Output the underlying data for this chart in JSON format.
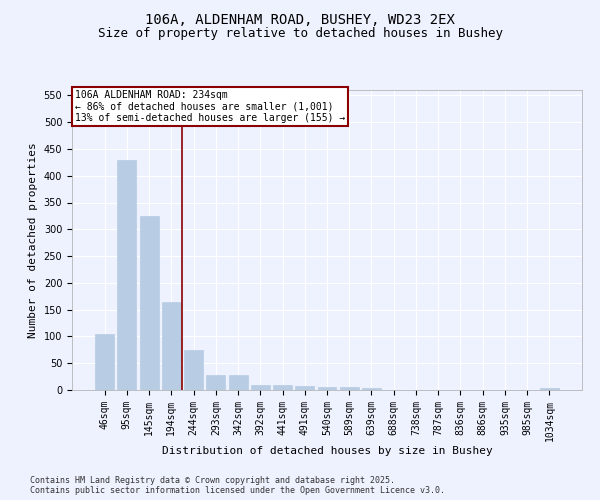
{
  "title1": "106A, ALDENHAM ROAD, BUSHEY, WD23 2EX",
  "title2": "Size of property relative to detached houses in Bushey",
  "xlabel": "Distribution of detached houses by size in Bushey",
  "ylabel": "Number of detached properties",
  "categories": [
    "46sqm",
    "95sqm",
    "145sqm",
    "194sqm",
    "244sqm",
    "293sqm",
    "342sqm",
    "392sqm",
    "441sqm",
    "491sqm",
    "540sqm",
    "589sqm",
    "639sqm",
    "688sqm",
    "738sqm",
    "787sqm",
    "836sqm",
    "886sqm",
    "935sqm",
    "985sqm",
    "1034sqm"
  ],
  "values": [
    105,
    430,
    325,
    165,
    75,
    28,
    28,
    10,
    10,
    8,
    5,
    5,
    4,
    0,
    0,
    0,
    0,
    0,
    0,
    0,
    3
  ],
  "bar_color": "#b8cce4",
  "bar_edgecolor": "#b8cce4",
  "vline_color": "#8b0000",
  "annotation_box_text": "106A ALDENHAM ROAD: 234sqm\n← 86% of detached houses are smaller (1,001)\n13% of semi-detached houses are larger (155) →",
  "annotation_box_color": "#8b0000",
  "ylim": [
    0,
    560
  ],
  "yticks": [
    0,
    50,
    100,
    150,
    200,
    250,
    300,
    350,
    400,
    450,
    500,
    550
  ],
  "bg_color": "#eef2ff",
  "grid_color": "#ffffff",
  "footer_text": "Contains HM Land Registry data © Crown copyright and database right 2025.\nContains public sector information licensed under the Open Government Licence v3.0.",
  "title_fontsize": 10,
  "subtitle_fontsize": 9,
  "axis_label_fontsize": 8,
  "tick_fontsize": 7,
  "annotation_fontsize": 7,
  "footer_fontsize": 6
}
